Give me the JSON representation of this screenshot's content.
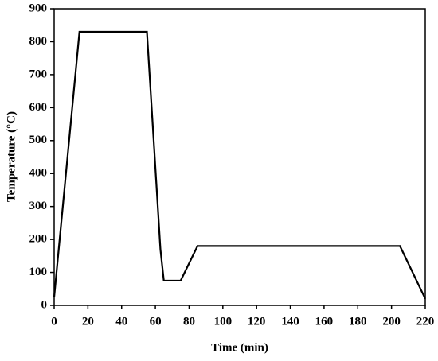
{
  "chart_data": {
    "type": "line",
    "x_label": "Time (min)",
    "y_label": "Temperature (°C)",
    "x": [
      0,
      15,
      55,
      63,
      65,
      75,
      85,
      205,
      220
    ],
    "series": [
      {
        "color": "#000000",
        "values": [
          25,
          830,
          830,
          170,
          75,
          75,
          180,
          180,
          20
        ]
      }
    ],
    "xlim": [
      0,
      220
    ],
    "xticks": [
      0,
      20,
      40,
      60,
      80,
      100,
      120,
      140,
      160,
      180,
      200,
      220
    ],
    "ylim": [
      0,
      900
    ],
    "yticks": [
      0,
      100,
      200,
      300,
      400,
      500,
      600,
      700,
      800,
      900
    ]
  }
}
